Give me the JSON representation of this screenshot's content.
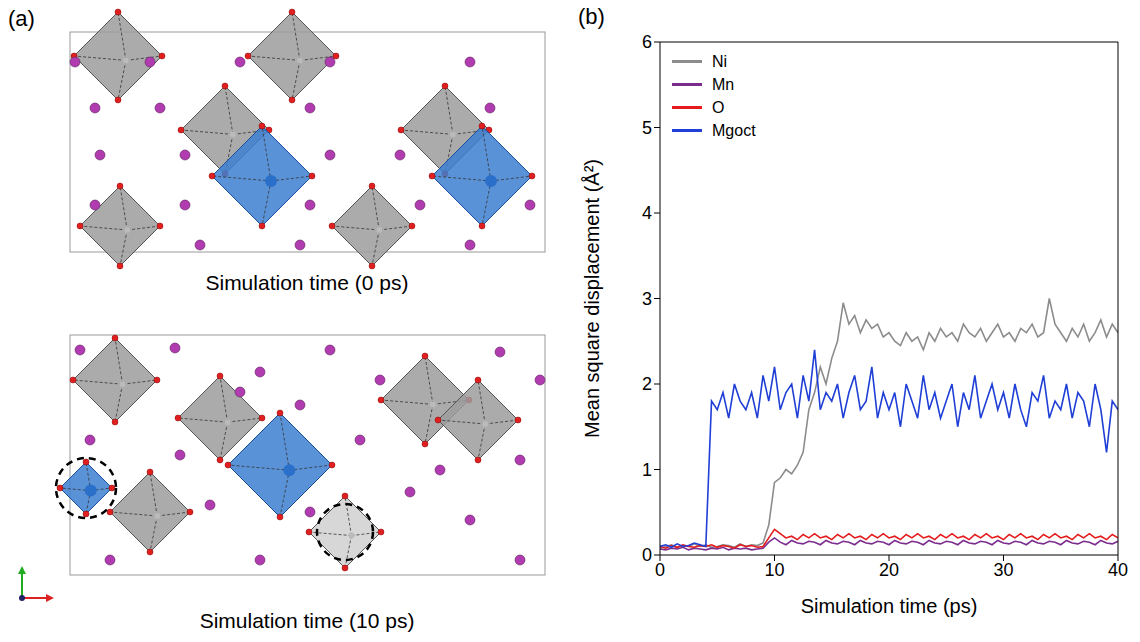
{
  "panel_a": {
    "label": "(a)",
    "captions": [
      "Simulation time (0 ps)",
      "Simulation time (10 ps)"
    ]
  },
  "chart_data": {
    "type": "line",
    "panel_label": "(b)",
    "x_label": "Simulation time (ps)",
    "y_label": "Mean square displacement (Å²)",
    "xlim": [
      0,
      40
    ],
    "xticks": [
      0,
      10,
      20,
      30,
      40
    ],
    "ylim": [
      0,
      6
    ],
    "yticks": [
      0,
      1,
      2,
      3,
      4,
      5,
      6
    ],
    "grid": false,
    "legend": "upper left",
    "x": [
      0,
      0.5,
      1,
      1.5,
      2,
      2.5,
      3,
      3.5,
      4,
      4.5,
      5,
      5.5,
      6,
      6.5,
      7,
      7.5,
      8,
      8.5,
      9,
      9.5,
      10,
      10.5,
      11,
      11.5,
      12,
      12.5,
      13,
      13.5,
      14,
      14.5,
      15,
      15.5,
      16,
      16.5,
      17,
      17.5,
      18,
      18.5,
      19,
      19.5,
      20,
      20.5,
      21,
      21.5,
      22,
      22.5,
      23,
      23.5,
      24,
      24.5,
      25,
      25.5,
      26,
      26.5,
      27,
      27.5,
      28,
      28.5,
      29,
      29.5,
      30,
      30.5,
      31,
      31.5,
      32,
      32.5,
      33,
      33.5,
      34,
      34.5,
      35,
      35.5,
      36,
      36.5,
      37,
      37.5,
      38,
      38.5,
      39,
      39.5,
      40
    ],
    "series": [
      {
        "name": "Ni",
        "color": "#8c8c8c",
        "values": [
          0.08,
          0.1,
          0.12,
          0.09,
          0.11,
          0.1,
          0.13,
          0.1,
          0.12,
          0.09,
          0.1,
          0.12,
          0.11,
          0.09,
          0.13,
          0.1,
          0.12,
          0.11,
          0.14,
          0.35,
          0.85,
          0.9,
          1.0,
          0.95,
          1.05,
          1.2,
          1.7,
          1.9,
          2.2,
          2.0,
          2.3,
          2.5,
          2.95,
          2.7,
          2.8,
          2.6,
          2.75,
          2.65,
          2.7,
          2.55,
          2.6,
          2.5,
          2.45,
          2.6,
          2.5,
          2.55,
          2.4,
          2.6,
          2.5,
          2.65,
          2.55,
          2.6,
          2.5,
          2.7,
          2.6,
          2.55,
          2.65,
          2.5,
          2.6,
          2.7,
          2.55,
          2.6,
          2.5,
          2.65,
          2.6,
          2.7,
          2.55,
          2.6,
          3.0,
          2.7,
          2.6,
          2.5,
          2.65,
          2.55,
          2.7,
          2.5,
          2.6,
          2.75,
          2.55,
          2.7,
          2.6
        ]
      },
      {
        "name": "Mn",
        "color": "#7b2d8e",
        "values": [
          0.07,
          0.06,
          0.08,
          0.07,
          0.09,
          0.06,
          0.08,
          0.07,
          0.06,
          0.08,
          0.07,
          0.09,
          0.06,
          0.08,
          0.07,
          0.08,
          0.06,
          0.07,
          0.08,
          0.15,
          0.2,
          0.15,
          0.12,
          0.17,
          0.14,
          0.13,
          0.16,
          0.15,
          0.12,
          0.17,
          0.14,
          0.13,
          0.16,
          0.15,
          0.12,
          0.17,
          0.14,
          0.13,
          0.16,
          0.15,
          0.12,
          0.17,
          0.14,
          0.13,
          0.16,
          0.15,
          0.12,
          0.17,
          0.14,
          0.13,
          0.16,
          0.15,
          0.12,
          0.17,
          0.14,
          0.13,
          0.16,
          0.15,
          0.12,
          0.17,
          0.14,
          0.13,
          0.16,
          0.15,
          0.12,
          0.17,
          0.14,
          0.13,
          0.16,
          0.15,
          0.12,
          0.17,
          0.14,
          0.13,
          0.16,
          0.15,
          0.12,
          0.17,
          0.14,
          0.13,
          0.16
        ]
      },
      {
        "name": "O",
        "color": "#e41a1c",
        "values": [
          0.1,
          0.08,
          0.11,
          0.09,
          0.12,
          0.1,
          0.09,
          0.11,
          0.1,
          0.12,
          0.09,
          0.11,
          0.1,
          0.08,
          0.12,
          0.1,
          0.11,
          0.09,
          0.1,
          0.2,
          0.3,
          0.25,
          0.2,
          0.22,
          0.18,
          0.24,
          0.2,
          0.25,
          0.2,
          0.22,
          0.18,
          0.24,
          0.2,
          0.25,
          0.2,
          0.22,
          0.18,
          0.24,
          0.2,
          0.25,
          0.2,
          0.22,
          0.18,
          0.24,
          0.2,
          0.25,
          0.2,
          0.22,
          0.18,
          0.24,
          0.2,
          0.25,
          0.2,
          0.22,
          0.18,
          0.24,
          0.2,
          0.25,
          0.2,
          0.22,
          0.18,
          0.24,
          0.2,
          0.25,
          0.2,
          0.22,
          0.18,
          0.24,
          0.2,
          0.25,
          0.2,
          0.22,
          0.18,
          0.24,
          0.2,
          0.25,
          0.2,
          0.22,
          0.18,
          0.24,
          0.2
        ]
      },
      {
        "name": "Mgoct",
        "color": "#1f3fd6",
        "values": [
          0.1,
          0.12,
          0.09,
          0.13,
          0.1,
          0.11,
          0.14,
          0.12,
          0.1,
          1.8,
          1.7,
          1.9,
          1.6,
          2.0,
          1.8,
          1.7,
          1.9,
          1.6,
          2.1,
          1.8,
          2.2,
          1.7,
          1.9,
          2.0,
          1.6,
          2.1,
          1.8,
          2.4,
          1.7,
          1.9,
          1.8,
          2.0,
          1.6,
          1.9,
          2.1,
          1.7,
          1.8,
          2.2,
          1.6,
          1.9,
          1.7,
          1.9,
          1.5,
          2.0,
          1.8,
          1.6,
          2.1,
          1.7,
          1.9,
          1.6,
          1.8,
          2.0,
          1.5,
          1.9,
          1.7,
          2.1,
          1.6,
          1.8,
          2.0,
          1.7,
          1.9,
          1.6,
          2.0,
          1.7,
          1.5,
          1.9,
          1.8,
          2.1,
          1.6,
          1.8,
          1.7,
          2.0,
          1.6,
          1.9,
          1.8,
          1.5,
          2.0,
          1.7,
          1.2,
          1.8,
          1.7
        ]
      }
    ]
  }
}
